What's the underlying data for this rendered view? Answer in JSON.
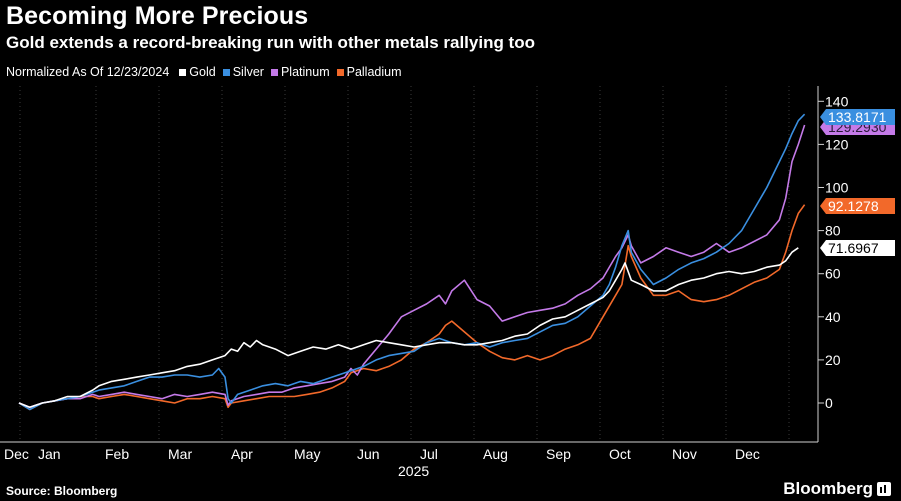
{
  "title": "Becoming More Precious",
  "subtitle": "Gold extends a record-breaking run with other metals rallying too",
  "legend_note": "Normalized As Of 12/23/2024",
  "source": "Source: Bloomberg",
  "brand": "Bloomberg",
  "brand_icon": "bloomberg-terminal-icon",
  "chart_data": {
    "type": "line",
    "title": "Becoming More Precious",
    "subtitle": "Gold extends a record-breaking run with other metals rallying too",
    "ylim": [
      -10,
      145
    ],
    "yticks": [
      0,
      20,
      40,
      60,
      80,
      100,
      120,
      140
    ],
    "y_axis_side": "right",
    "grid": "vertical dotted at month boundaries",
    "legend_position": "top-left",
    "x_months": [
      "Dec",
      "Jan",
      "Feb",
      "Mar",
      "Apr",
      "May",
      "Jun",
      "Jul",
      "Aug",
      "Sep",
      "Oct",
      "Nov",
      "Dec"
    ],
    "x_year_label": "2025",
    "month_index_note": "x values are months: 0 = start of Jan 2025, -0.27 = 12/23/2024, 12 = start of Dec 2025",
    "series": [
      {
        "name": "Gold",
        "color": "#ffffff",
        "last_value": "71.6967",
        "points": [
          [
            -0.27,
            0
          ],
          [
            -0.1,
            -2
          ],
          [
            0.1,
            0
          ],
          [
            0.3,
            1
          ],
          [
            0.5,
            3
          ],
          [
            0.7,
            3
          ],
          [
            0.9,
            6
          ],
          [
            1.0,
            8
          ],
          [
            1.2,
            10
          ],
          [
            1.4,
            11
          ],
          [
            1.6,
            12
          ],
          [
            1.8,
            13
          ],
          [
            2.0,
            14
          ],
          [
            2.2,
            15
          ],
          [
            2.4,
            17
          ],
          [
            2.6,
            18
          ],
          [
            2.8,
            20
          ],
          [
            3.0,
            22
          ],
          [
            3.1,
            25
          ],
          [
            3.2,
            24
          ],
          [
            3.3,
            28
          ],
          [
            3.4,
            26
          ],
          [
            3.5,
            29
          ],
          [
            3.6,
            27
          ],
          [
            3.8,
            25
          ],
          [
            4.0,
            22
          ],
          [
            4.2,
            24
          ],
          [
            4.4,
            26
          ],
          [
            4.6,
            25
          ],
          [
            4.8,
            27
          ],
          [
            5.0,
            25
          ],
          [
            5.2,
            27
          ],
          [
            5.4,
            29
          ],
          [
            5.6,
            28
          ],
          [
            5.8,
            27
          ],
          [
            6.0,
            26
          ],
          [
            6.2,
            27
          ],
          [
            6.4,
            28
          ],
          [
            6.6,
            28
          ],
          [
            6.8,
            27
          ],
          [
            7.0,
            27
          ],
          [
            7.2,
            28
          ],
          [
            7.4,
            29
          ],
          [
            7.6,
            31
          ],
          [
            7.8,
            32
          ],
          [
            8.0,
            36
          ],
          [
            8.2,
            39
          ],
          [
            8.4,
            40
          ],
          [
            8.6,
            43
          ],
          [
            8.8,
            46
          ],
          [
            9.0,
            49
          ],
          [
            9.1,
            52
          ],
          [
            9.2,
            57
          ],
          [
            9.3,
            62
          ],
          [
            9.35,
            65
          ],
          [
            9.45,
            57
          ],
          [
            9.6,
            55
          ],
          [
            9.8,
            52
          ],
          [
            10.0,
            52
          ],
          [
            10.2,
            55
          ],
          [
            10.4,
            57
          ],
          [
            10.6,
            58
          ],
          [
            10.8,
            60
          ],
          [
            11.0,
            61
          ],
          [
            11.2,
            60
          ],
          [
            11.4,
            61
          ],
          [
            11.6,
            63
          ],
          [
            11.8,
            64
          ],
          [
            11.9,
            66
          ],
          [
            12.0,
            70
          ],
          [
            12.1,
            72
          ]
        ]
      },
      {
        "name": "Silver",
        "color": "#3a8fe0",
        "last_value": "133.8171",
        "points": [
          [
            -0.27,
            0
          ],
          [
            -0.1,
            -3
          ],
          [
            0.1,
            0
          ],
          [
            0.3,
            1
          ],
          [
            0.5,
            2
          ],
          [
            0.7,
            3
          ],
          [
            0.9,
            5
          ],
          [
            1.0,
            6
          ],
          [
            1.2,
            7
          ],
          [
            1.4,
            8
          ],
          [
            1.6,
            10
          ],
          [
            1.8,
            12
          ],
          [
            2.0,
            12
          ],
          [
            2.2,
            13
          ],
          [
            2.4,
            13
          ],
          [
            2.6,
            12
          ],
          [
            2.8,
            13
          ],
          [
            2.9,
            16
          ],
          [
            3.0,
            12
          ],
          [
            3.05,
            2
          ],
          [
            3.1,
            0
          ],
          [
            3.2,
            4
          ],
          [
            3.4,
            6
          ],
          [
            3.6,
            8
          ],
          [
            3.8,
            9
          ],
          [
            4.0,
            8
          ],
          [
            4.2,
            10
          ],
          [
            4.4,
            9
          ],
          [
            4.6,
            11
          ],
          [
            4.8,
            13
          ],
          [
            5.0,
            15
          ],
          [
            5.2,
            17
          ],
          [
            5.4,
            20
          ],
          [
            5.6,
            22
          ],
          [
            5.8,
            23
          ],
          [
            6.0,
            24
          ],
          [
            6.2,
            28
          ],
          [
            6.4,
            30
          ],
          [
            6.6,
            28
          ],
          [
            6.8,
            27
          ],
          [
            7.0,
            28
          ],
          [
            7.2,
            26
          ],
          [
            7.4,
            28
          ],
          [
            7.6,
            29
          ],
          [
            7.8,
            30
          ],
          [
            8.0,
            33
          ],
          [
            8.2,
            36
          ],
          [
            8.4,
            37
          ],
          [
            8.6,
            40
          ],
          [
            8.8,
            45
          ],
          [
            9.0,
            50
          ],
          [
            9.1,
            55
          ],
          [
            9.2,
            63
          ],
          [
            9.3,
            73
          ],
          [
            9.4,
            80
          ],
          [
            9.45,
            70
          ],
          [
            9.6,
            62
          ],
          [
            9.8,
            55
          ],
          [
            10.0,
            58
          ],
          [
            10.2,
            62
          ],
          [
            10.4,
            65
          ],
          [
            10.6,
            67
          ],
          [
            10.8,
            70
          ],
          [
            11.0,
            74
          ],
          [
            11.2,
            80
          ],
          [
            11.4,
            90
          ],
          [
            11.6,
            100
          ],
          [
            11.8,
            112
          ],
          [
            11.9,
            118
          ],
          [
            12.0,
            125
          ],
          [
            12.1,
            131
          ],
          [
            12.2,
            134
          ]
        ]
      },
      {
        "name": "Platinum",
        "color": "#c47ae8",
        "last_value": "129.2930",
        "points": [
          [
            -0.27,
            0
          ],
          [
            -0.1,
            -2
          ],
          [
            0.1,
            0
          ],
          [
            0.3,
            1
          ],
          [
            0.5,
            2
          ],
          [
            0.7,
            2
          ],
          [
            0.9,
            4
          ],
          [
            1.0,
            3
          ],
          [
            1.2,
            4
          ],
          [
            1.4,
            5
          ],
          [
            1.6,
            4
          ],
          [
            1.8,
            3
          ],
          [
            2.0,
            2
          ],
          [
            2.2,
            4
          ],
          [
            2.4,
            3
          ],
          [
            2.6,
            4
          ],
          [
            2.8,
            5
          ],
          [
            3.0,
            4
          ],
          [
            3.05,
            -1
          ],
          [
            3.1,
            1
          ],
          [
            3.3,
            3
          ],
          [
            3.5,
            4
          ],
          [
            3.7,
            5
          ],
          [
            3.9,
            5
          ],
          [
            4.1,
            7
          ],
          [
            4.3,
            8
          ],
          [
            4.5,
            9
          ],
          [
            4.7,
            10
          ],
          [
            4.9,
            12
          ],
          [
            5.0,
            16
          ],
          [
            5.1,
            13
          ],
          [
            5.2,
            18
          ],
          [
            5.4,
            25
          ],
          [
            5.6,
            32
          ],
          [
            5.8,
            40
          ],
          [
            6.0,
            43
          ],
          [
            6.2,
            46
          ],
          [
            6.4,
            50
          ],
          [
            6.5,
            46
          ],
          [
            6.6,
            52
          ],
          [
            6.8,
            57
          ],
          [
            7.0,
            48
          ],
          [
            7.2,
            45
          ],
          [
            7.4,
            38
          ],
          [
            7.6,
            40
          ],
          [
            7.8,
            42
          ],
          [
            8.0,
            43
          ],
          [
            8.2,
            44
          ],
          [
            8.4,
            46
          ],
          [
            8.6,
            50
          ],
          [
            8.8,
            53
          ],
          [
            9.0,
            58
          ],
          [
            9.2,
            68
          ],
          [
            9.3,
            72
          ],
          [
            9.4,
            78
          ],
          [
            9.45,
            73
          ],
          [
            9.6,
            65
          ],
          [
            9.8,
            68
          ],
          [
            10.0,
            72
          ],
          [
            10.2,
            70
          ],
          [
            10.4,
            68
          ],
          [
            10.6,
            70
          ],
          [
            10.8,
            74
          ],
          [
            11.0,
            70
          ],
          [
            11.2,
            72
          ],
          [
            11.4,
            75
          ],
          [
            11.6,
            78
          ],
          [
            11.8,
            85
          ],
          [
            11.9,
            95
          ],
          [
            12.0,
            112
          ],
          [
            12.1,
            120
          ],
          [
            12.2,
            129
          ]
        ]
      },
      {
        "name": "Palladium",
        "color": "#f2692a",
        "last_value": "92.1278",
        "points": [
          [
            -0.27,
            0
          ],
          [
            -0.1,
            -3
          ],
          [
            0.1,
            0
          ],
          [
            0.3,
            1
          ],
          [
            0.5,
            2
          ],
          [
            0.7,
            3
          ],
          [
            0.9,
            3
          ],
          [
            1.0,
            2
          ],
          [
            1.2,
            3
          ],
          [
            1.4,
            4
          ],
          [
            1.6,
            3
          ],
          [
            1.8,
            2
          ],
          [
            2.0,
            1
          ],
          [
            2.2,
            0
          ],
          [
            2.4,
            2
          ],
          [
            2.6,
            2
          ],
          [
            2.8,
            3
          ],
          [
            3.0,
            2
          ],
          [
            3.05,
            -2
          ],
          [
            3.1,
            0
          ],
          [
            3.3,
            1
          ],
          [
            3.5,
            2
          ],
          [
            3.7,
            3
          ],
          [
            3.9,
            3
          ],
          [
            4.1,
            3
          ],
          [
            4.3,
            4
          ],
          [
            4.5,
            5
          ],
          [
            4.7,
            7
          ],
          [
            4.9,
            10
          ],
          [
            5.0,
            14
          ],
          [
            5.2,
            16
          ],
          [
            5.4,
            15
          ],
          [
            5.6,
            17
          ],
          [
            5.8,
            20
          ],
          [
            6.0,
            25
          ],
          [
            6.2,
            28
          ],
          [
            6.4,
            32
          ],
          [
            6.5,
            36
          ],
          [
            6.6,
            38
          ],
          [
            6.8,
            33
          ],
          [
            7.0,
            28
          ],
          [
            7.2,
            24
          ],
          [
            7.4,
            21
          ],
          [
            7.6,
            20
          ],
          [
            7.8,
            22
          ],
          [
            8.0,
            20
          ],
          [
            8.2,
            22
          ],
          [
            8.4,
            25
          ],
          [
            8.6,
            27
          ],
          [
            8.8,
            30
          ],
          [
            9.0,
            40
          ],
          [
            9.2,
            50
          ],
          [
            9.3,
            55
          ],
          [
            9.4,
            73
          ],
          [
            9.45,
            68
          ],
          [
            9.6,
            58
          ],
          [
            9.8,
            50
          ],
          [
            10.0,
            50
          ],
          [
            10.2,
            52
          ],
          [
            10.4,
            48
          ],
          [
            10.6,
            47
          ],
          [
            10.8,
            48
          ],
          [
            11.0,
            50
          ],
          [
            11.2,
            53
          ],
          [
            11.4,
            56
          ],
          [
            11.6,
            58
          ],
          [
            11.8,
            62
          ],
          [
            11.9,
            70
          ],
          [
            12.0,
            80
          ],
          [
            12.1,
            88
          ],
          [
            12.2,
            92
          ]
        ]
      }
    ]
  }
}
